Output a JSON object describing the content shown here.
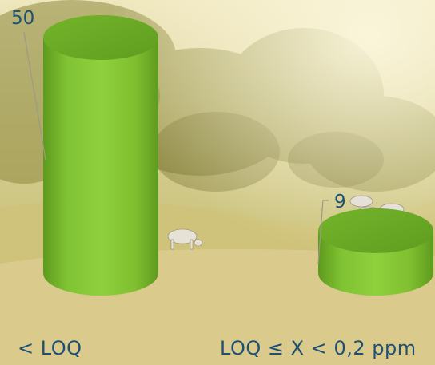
{
  "colors": {
    "bar_fill": "#7fc233",
    "bar_top": "#6fb028",
    "label_color": "#1e4f74",
    "background": "#d8c98a"
  },
  "chart_data": {
    "type": "bar",
    "style": "3d-cylinder",
    "categories": [
      "< LOQ",
      "LOQ ≤ X < 0,2 ppm"
    ],
    "values": [
      50,
      9
    ],
    "data_labels": [
      "50",
      "9"
    ],
    "ylim": [
      0,
      50
    ],
    "grid": false,
    "legend": "none",
    "background": "photo of a misty meadow with grazing cows"
  }
}
